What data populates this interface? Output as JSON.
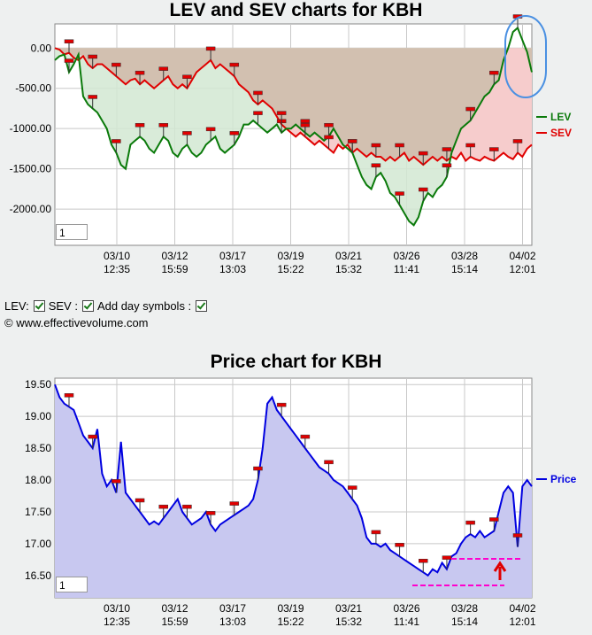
{
  "chart_data": [
    {
      "type": "line",
      "title": "LEV and SEV charts for KBH",
      "y_ticks": [
        "0.00",
        "-500.00",
        "-1000.00",
        "-1500.00",
        "-2000.00"
      ],
      "y_tick_values": [
        0,
        -500,
        -1000,
        -1500,
        -2000
      ],
      "ylim": [
        -2450,
        300
      ],
      "x_ticks": [
        {
          "date": "03/10",
          "time": "12:35"
        },
        {
          "date": "03/12",
          "time": "15:59"
        },
        {
          "date": "03/17",
          "time": "13:03"
        },
        {
          "date": "03/19",
          "time": "15:22"
        },
        {
          "date": "03/21",
          "time": "15:32"
        },
        {
          "date": "03/26",
          "time": "11:41"
        },
        {
          "date": "03/28",
          "time": "15:14"
        },
        {
          "date": "04/02",
          "time": "12:01"
        }
      ],
      "series": [
        {
          "name": "LEV",
          "color": "#0a7a0a",
          "values": [
            -150,
            -100,
            -80,
            -300,
            -200,
            -80,
            -600,
            -700,
            -750,
            -800,
            -900,
            -1000,
            -1200,
            -1300,
            -1450,
            -1500,
            -1200,
            -1150,
            -1100,
            -1150,
            -1250,
            -1300,
            -1200,
            -1100,
            -1150,
            -1300,
            -1350,
            -1250,
            -1200,
            -1300,
            -1350,
            -1300,
            -1200,
            -1150,
            -1100,
            -1250,
            -1300,
            -1250,
            -1200,
            -1100,
            -950,
            -950,
            -900,
            -950,
            -1000,
            -1050,
            -1000,
            -950,
            -1050,
            -1000,
            -1000,
            -950,
            -1000,
            -1050,
            -1100,
            -1050,
            -1100,
            -1150,
            -1100,
            -1000,
            -1100,
            -1200,
            -1250,
            -1300,
            -1450,
            -1600,
            -1700,
            -1750,
            -1600,
            -1550,
            -1650,
            -1800,
            -1850,
            -1950,
            -2050,
            -2150,
            -2200,
            -2100,
            -1900,
            -1800,
            -1850,
            -1750,
            -1700,
            -1600,
            -1300,
            -1150,
            -1000,
            -950,
            -900,
            -800,
            -700,
            -600,
            -550,
            -450,
            -400,
            -150,
            0,
            200,
            250,
            100,
            -50,
            -300
          ]
        },
        {
          "name": "SEV",
          "color": "#e00000",
          "values": [
            0,
            -20,
            -80,
            -60,
            -120,
            -150,
            -100,
            -200,
            -250,
            -200,
            -200,
            -250,
            -300,
            -350,
            -400,
            -450,
            -400,
            -380,
            -450,
            -400,
            -450,
            -500,
            -450,
            -400,
            -350,
            -450,
            -500,
            -450,
            -500,
            -400,
            -300,
            -250,
            -200,
            -150,
            -250,
            -200,
            -250,
            -300,
            -350,
            -450,
            -500,
            -550,
            -650,
            -700,
            -650,
            -700,
            -750,
            -850,
            -950,
            -1000,
            -1050,
            -1100,
            -1050,
            -1100,
            -1150,
            -1200,
            -1150,
            -1200,
            -1250,
            -1300,
            -1200,
            -1250,
            -1200,
            -1300,
            -1250,
            -1300,
            -1350,
            -1300,
            -1350,
            -1350,
            -1400,
            -1350,
            -1400,
            -1350,
            -1300,
            -1400,
            -1350,
            -1400,
            -1450,
            -1400,
            -1350,
            -1400,
            -1350,
            -1400,
            -1350,
            -1380,
            -1300,
            -1400,
            -1350,
            -1380,
            -1400,
            -1350,
            -1380,
            -1400,
            -1350,
            -1300,
            -1350,
            -1380,
            -1300,
            -1350,
            -1250,
            -1200
          ]
        }
      ],
      "legend": [
        "LEV",
        "SEV"
      ],
      "legend_position": "right",
      "grid": true,
      "zoom_value": "1"
    },
    {
      "type": "area",
      "title": "Price chart for KBH",
      "y_ticks": [
        "19.50",
        "19.00",
        "18.50",
        "18.00",
        "17.50",
        "17.00",
        "16.50"
      ],
      "y_tick_values": [
        19.5,
        19.0,
        18.5,
        18.0,
        17.5,
        17.0,
        16.5
      ],
      "ylim": [
        16.15,
        19.6
      ],
      "x_ticks": [
        {
          "date": "03/10",
          "time": "12:35"
        },
        {
          "date": "03/12",
          "time": "15:59"
        },
        {
          "date": "03/17",
          "time": "13:03"
        },
        {
          "date": "03/19",
          "time": "15:22"
        },
        {
          "date": "03/21",
          "time": "15:32"
        },
        {
          "date": "03/26",
          "time": "11:41"
        },
        {
          "date": "03/28",
          "time": "15:14"
        },
        {
          "date": "04/02",
          "time": "12:01"
        }
      ],
      "series": [
        {
          "name": "Price",
          "color": "#0000e0",
          "values": [
            19.5,
            19.3,
            19.2,
            19.15,
            19.1,
            18.9,
            18.7,
            18.6,
            18.5,
            18.8,
            18.1,
            17.9,
            18.0,
            17.8,
            18.6,
            17.8,
            17.7,
            17.6,
            17.5,
            17.4,
            17.3,
            17.35,
            17.3,
            17.4,
            17.5,
            17.6,
            17.7,
            17.5,
            17.4,
            17.3,
            17.35,
            17.4,
            17.5,
            17.3,
            17.2,
            17.3,
            17.35,
            17.4,
            17.45,
            17.5,
            17.55,
            17.6,
            17.7,
            18.0,
            18.5,
            19.2,
            19.3,
            19.1,
            19.0,
            18.9,
            18.8,
            18.7,
            18.6,
            18.5,
            18.4,
            18.3,
            18.2,
            18.15,
            18.1,
            18.0,
            17.95,
            17.9,
            17.8,
            17.7,
            17.6,
            17.4,
            17.1,
            17.0,
            17.0,
            16.95,
            17.0,
            16.9,
            16.85,
            16.8,
            16.75,
            16.7,
            16.65,
            16.6,
            16.55,
            16.5,
            16.6,
            16.55,
            16.7,
            16.6,
            16.8,
            16.85,
            17.0,
            17.1,
            17.15,
            17.1,
            17.2,
            17.1,
            17.15,
            17.2,
            17.5,
            17.8,
            17.9,
            17.8,
            16.95,
            17.9,
            18.0,
            17.9
          ]
        }
      ],
      "legend": [
        "Price"
      ],
      "legend_position": "right",
      "grid": true,
      "zoom_value": "1"
    }
  ],
  "controls": {
    "lev_label": "LEV:",
    "sev_label": "SEV :",
    "day_symbols_label": "Add day symbols :"
  },
  "copyright": "© www.effectivevolume.com",
  "colors": {
    "lev": "#0a7a0a",
    "sev": "#e00000",
    "price": "#0000e0",
    "lev_fill": "#d2e8d2",
    "sev_fill": "#f6cccc",
    "both_fill": "#d2c0b0",
    "price_fill": "#c8c8f0",
    "highlight": "#4a90e2",
    "dashed": "#ff00cc",
    "arrow": "#e00000"
  }
}
